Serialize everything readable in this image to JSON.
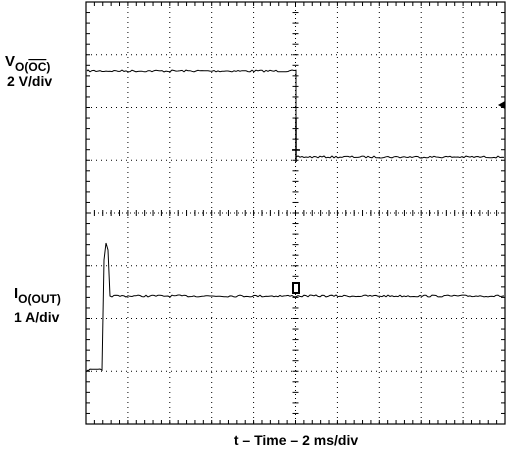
{
  "channel_1": {
    "symbol": "V",
    "subscript_start": "O(",
    "subscript_overlined": "OC",
    "subscript_end": ")",
    "scale": "2 V/div"
  },
  "channel_2": {
    "symbol": "I",
    "subscript": "O(OUT)",
    "scale": "1 A/div"
  },
  "x_axis_label": "t – Time – 2 ms/div"
}
